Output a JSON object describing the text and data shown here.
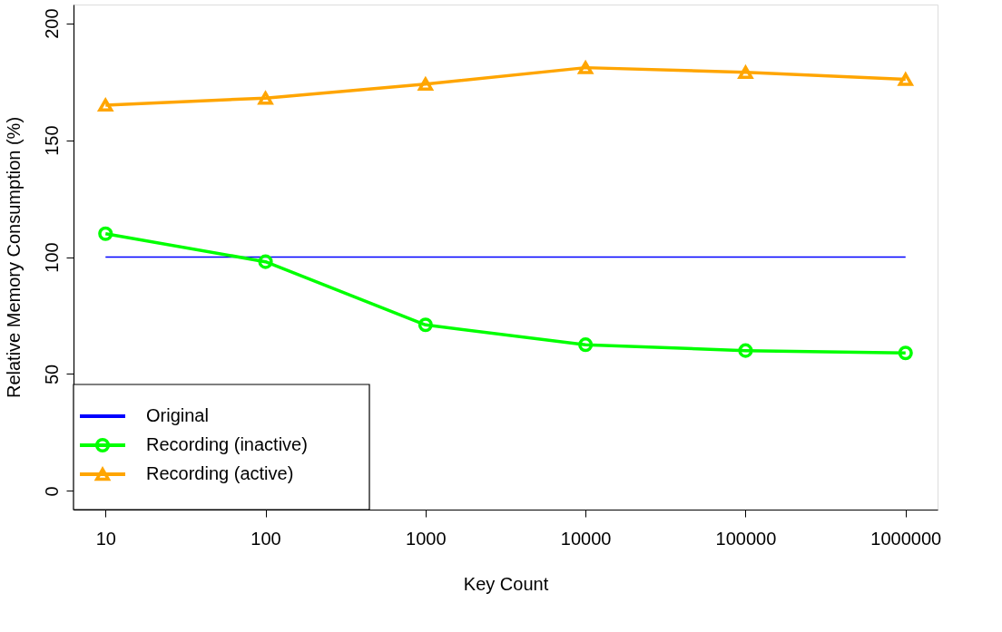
{
  "chart_data": {
    "type": "line",
    "xlabel": "Key Count",
    "ylabel": "Relative Memory Consumption (%)",
    "categories": [
      "10",
      "100",
      "1000",
      "10000",
      "100000",
      "1000000"
    ],
    "series": [
      {
        "name": "Original",
        "color": "#0000ff",
        "marker": "none",
        "values": [
          100,
          100,
          100,
          100,
          100,
          100
        ]
      },
      {
        "name": "Recording (inactive)",
        "color": "#00ff00",
        "marker": "circle",
        "values": [
          110,
          98,
          71,
          62.5,
          60,
          59
        ]
      },
      {
        "name": "Recording (active)",
        "color": "#ffa500",
        "marker": "triangle",
        "values": [
          165,
          168,
          174,
          181,
          179,
          176
        ]
      }
    ],
    "ylim": [
      -8,
      208
    ],
    "yticks": [
      0,
      50,
      100,
      150,
      200
    ],
    "grid": false,
    "legend": "bottom left"
  }
}
